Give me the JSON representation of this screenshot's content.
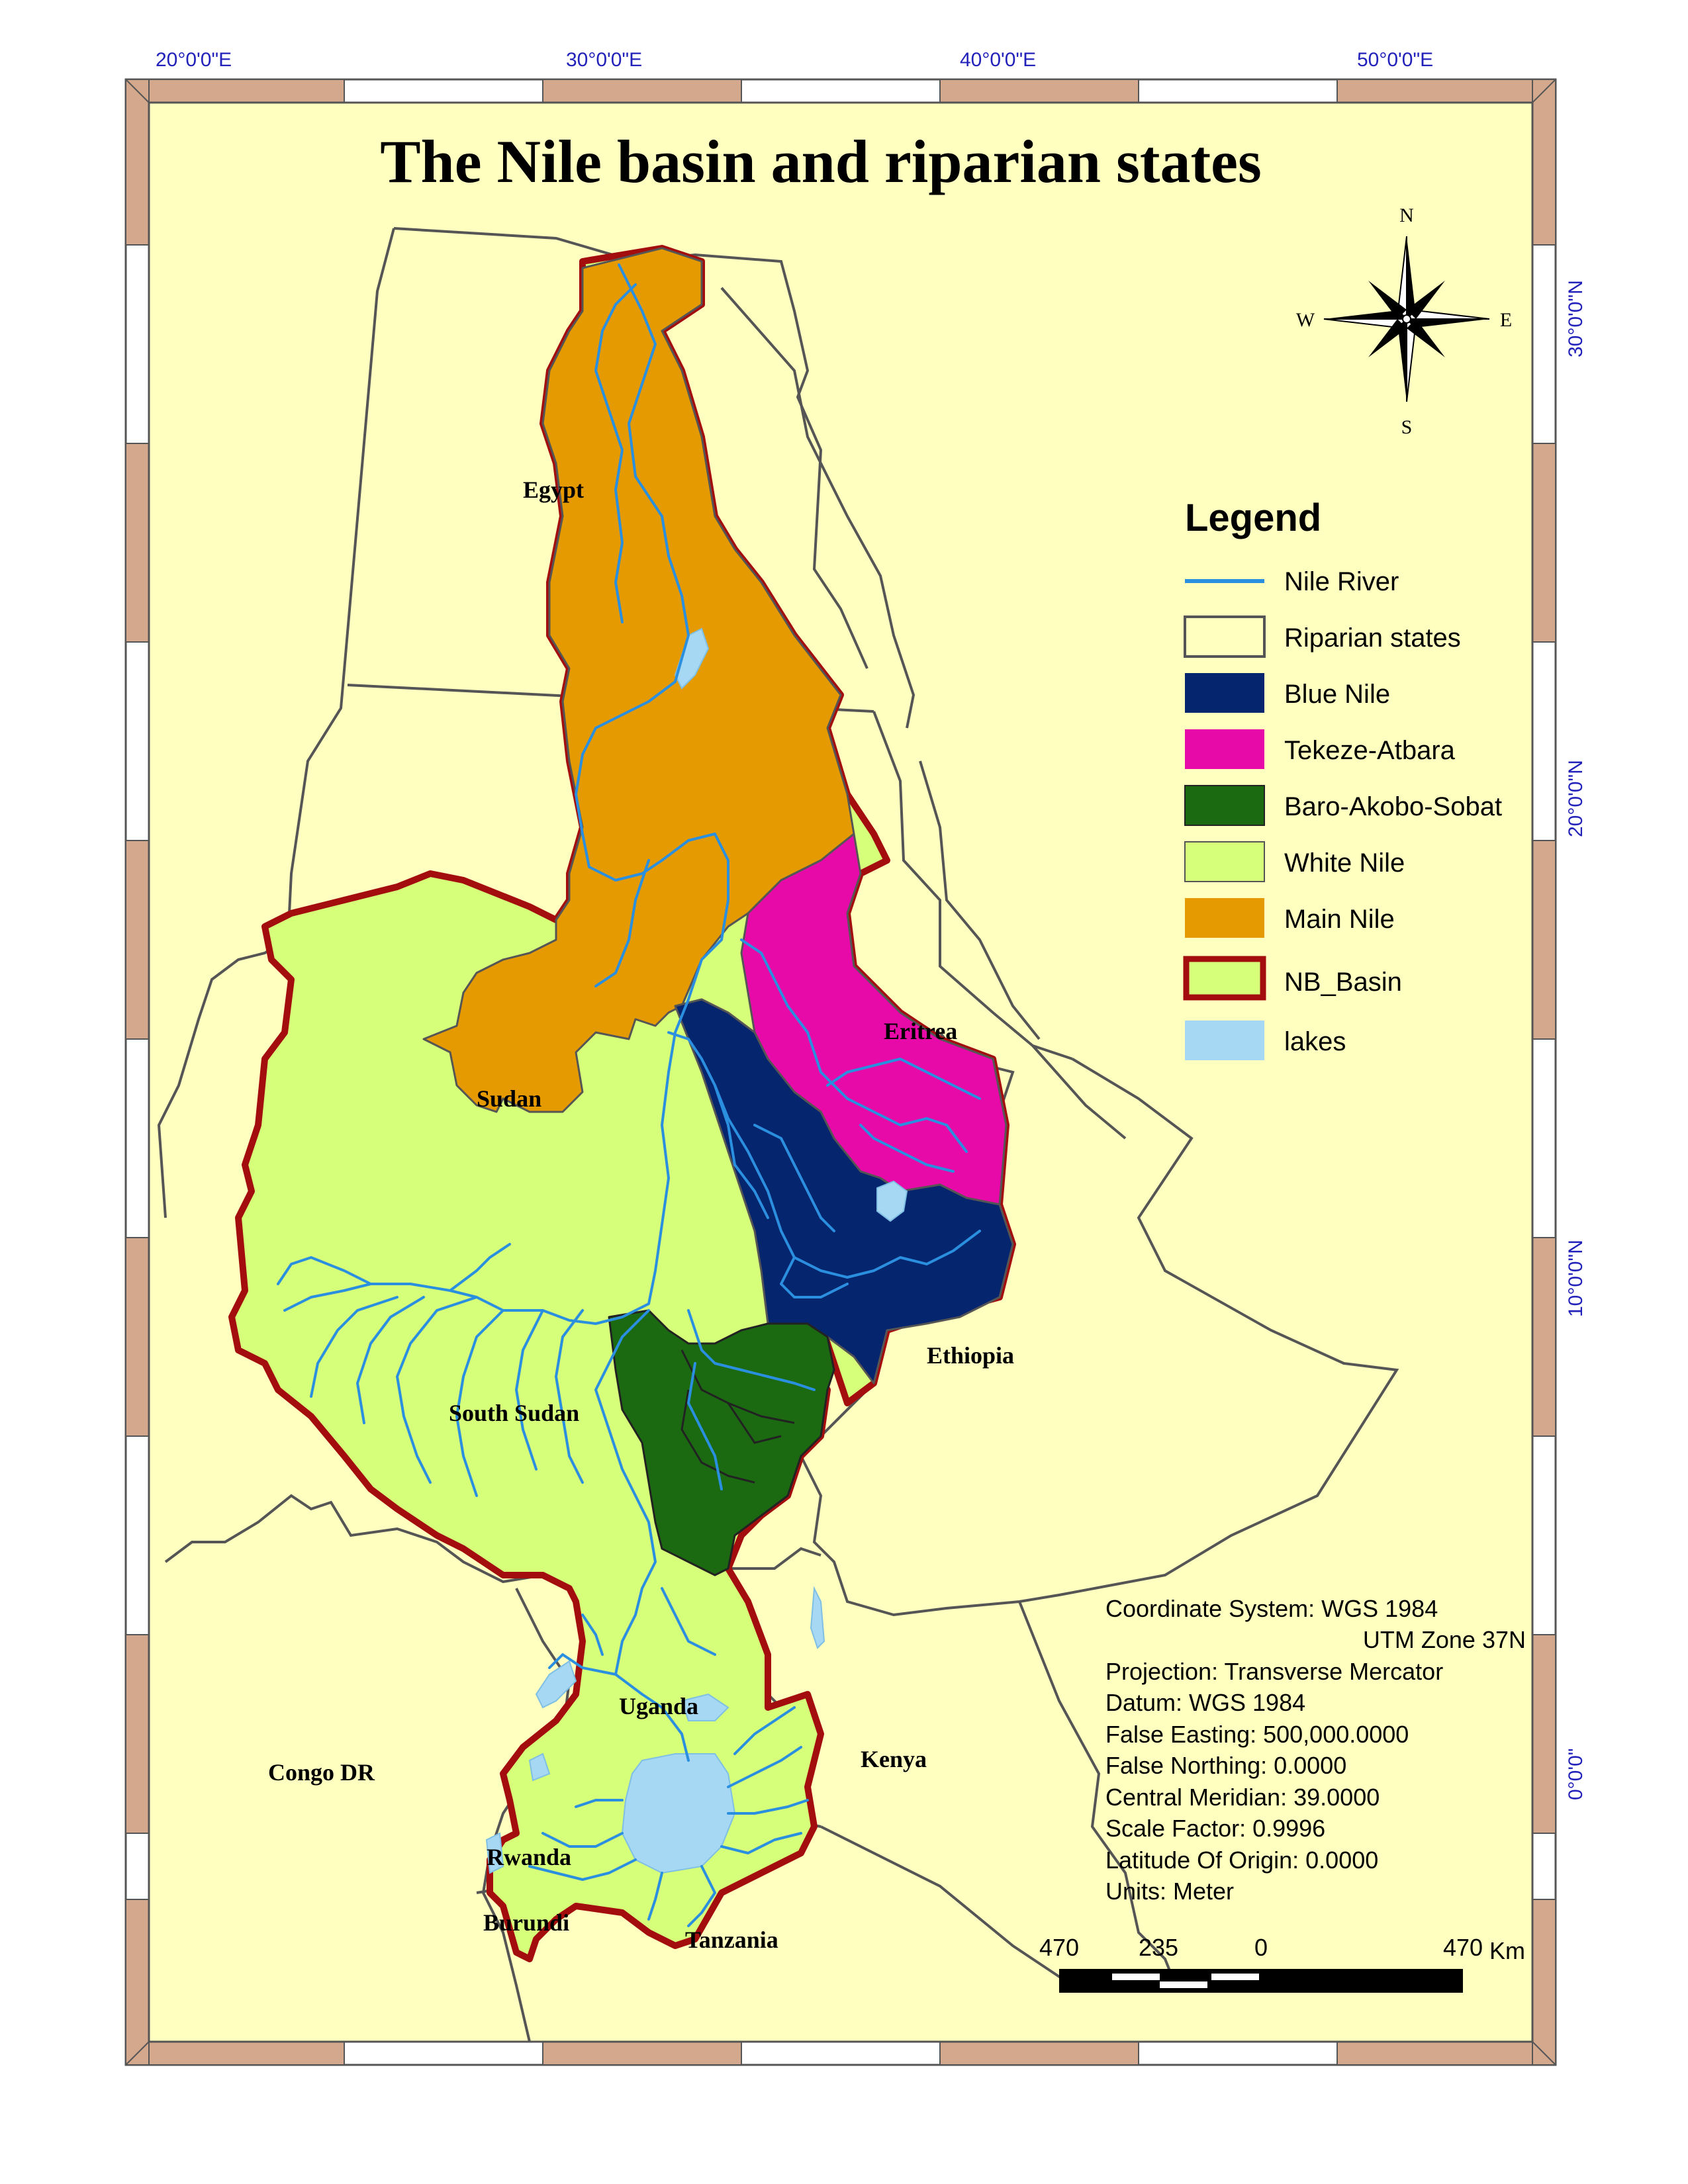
{
  "title": "The Nile basin and riparian states",
  "grid": {
    "longitude_labels": [
      "20°0'0\"E",
      "30°0'0\"E",
      "40°0'0\"E",
      "50°0'0\"E"
    ],
    "latitude_labels": [
      "30°0'0\"N",
      "20°0'0\"N",
      "10°0'0\"N",
      "0°0'0\""
    ]
  },
  "compass": {
    "n": "N",
    "s": "S",
    "e": "E",
    "w": "W"
  },
  "countries": {
    "egypt": "Egypt",
    "sudan": "Sudan",
    "eritrea": "Eritrea",
    "ethiopia": "Ethiopia",
    "south_sudan": "South Sudan",
    "uganda": "Uganda",
    "kenya": "Kenya",
    "congo": "Congo DR",
    "rwanda": "Rwanda",
    "burundi": "Burundi",
    "tanzania": "Tanzania"
  },
  "legend": {
    "title": "Legend",
    "items": [
      {
        "label": "Nile River",
        "color": "#2b8fe0"
      },
      {
        "label": "Riparian states",
        "color": "#ffffc0"
      },
      {
        "label": "Blue Nile",
        "color": "#06256f"
      },
      {
        "label": "Tekeze-Atbara",
        "color": "#e80aa8"
      },
      {
        "label": "Baro-Akobo-Sobat",
        "color": "#1b6a12"
      },
      {
        "label": "White Nile",
        "color": "#d6ff7a"
      },
      {
        "label": "Main Nile",
        "color": "#e49a00"
      },
      {
        "label": "NB_Basin",
        "color": "#a30d0d"
      },
      {
        "label": "lakes",
        "color": "#a6d8f4"
      }
    ]
  },
  "info": {
    "lines": [
      "Coordinate System: WGS 1984",
      "UTM Zone 37N",
      "Projection: Transverse Mercator",
      "Datum: WGS 1984",
      "False Easting: 500,000.0000",
      "False Northing: 0.0000",
      "Central Meridian: 39.0000",
      "Scale Factor: 0.9996",
      "Latitude Of Origin: 0.0000",
      "Units: Meter"
    ]
  },
  "scale": {
    "labels": [
      "470",
      "235",
      "0",
      "470"
    ],
    "unit": "Km"
  },
  "colors": {
    "background": "#ffffc0",
    "frame_brown": "#d4a88c",
    "basin_outline": "#a30d0d",
    "border_gray": "#555555",
    "grid_label": "#2222bb"
  }
}
